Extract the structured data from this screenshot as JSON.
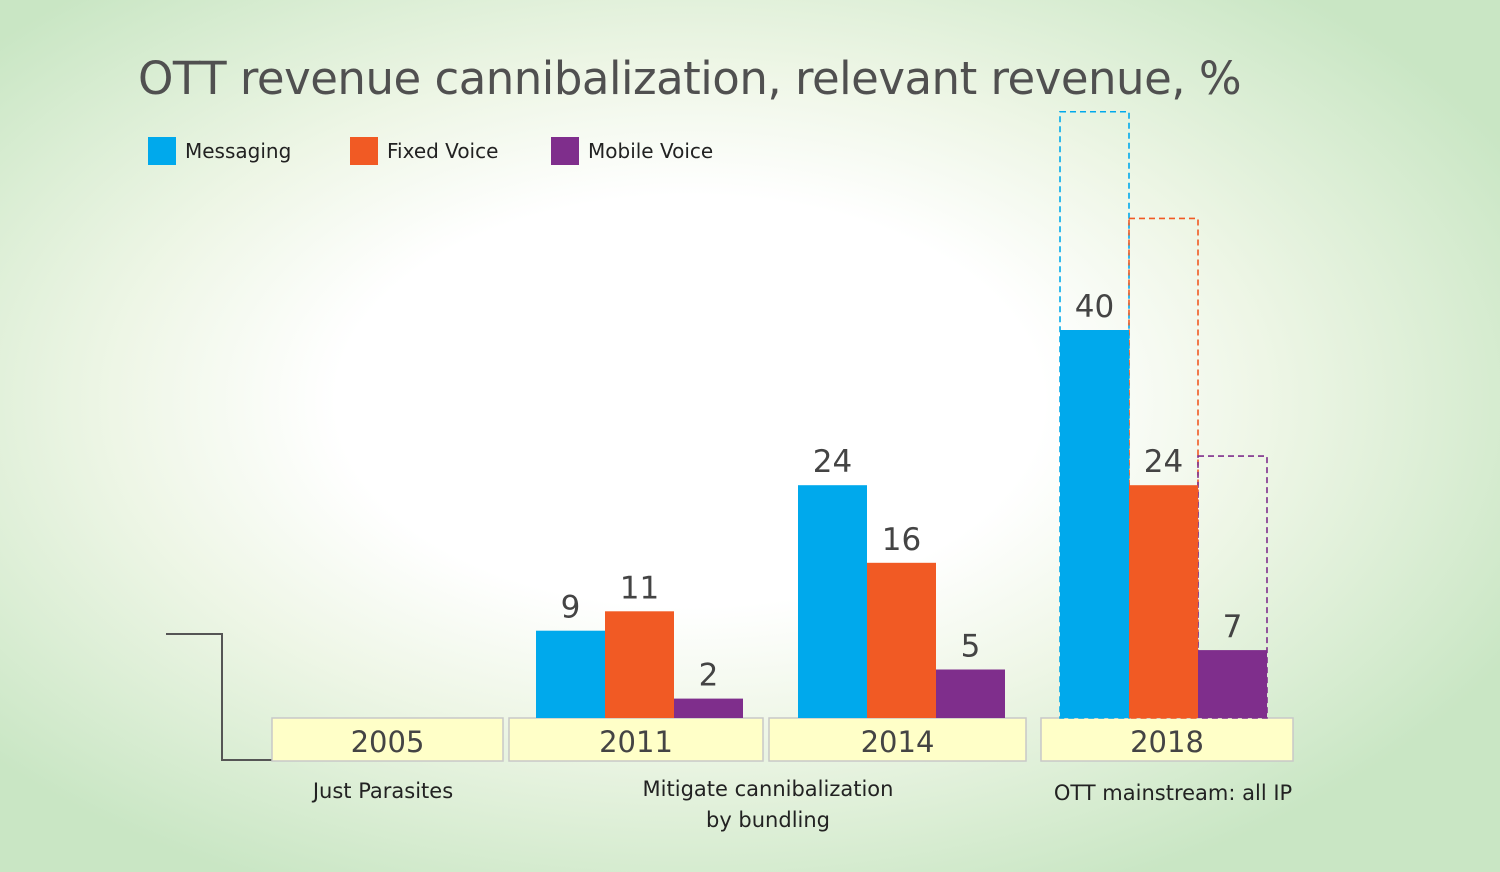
{
  "title": "OTT revenue cannibalization, relevant revenue, %",
  "legend": [
    {
      "label": "Messaging",
      "color": "#00a9ec"
    },
    {
      "label": "Fixed Voice",
      "color": "#f15a24"
    },
    {
      "label": "Mobile Voice",
      "color": "#7f2e8c"
    }
  ],
  "notes": {
    "just_parasites": "Just Parasites",
    "mitigate_line1": "Mitigate cannibalization",
    "mitigate_line2": "by bundling",
    "ott_mainstream": "OTT mainstream: all IP"
  },
  "chart_data": {
    "type": "bar",
    "title": "OTT revenue cannibalization, relevant revenue, %",
    "categories": [
      "2005",
      "2011",
      "2014",
      "2018"
    ],
    "series": [
      {
        "name": "Messaging",
        "color": "#00a9ec",
        "values": [
          null,
          9,
          24,
          40
        ]
      },
      {
        "name": "Fixed Voice",
        "color": "#f15a24",
        "values": [
          null,
          11,
          16,
          24
        ]
      },
      {
        "name": "Mobile Voice",
        "color": "#7f2e8c",
        "values": [
          null,
          2,
          5,
          7
        ]
      }
    ],
    "projected_2018": {
      "Messaging": 62.5,
      "Fixed Voice": 51.5,
      "Mobile Voice": 27
    },
    "legend_position": "top-left",
    "grid": false
  }
}
